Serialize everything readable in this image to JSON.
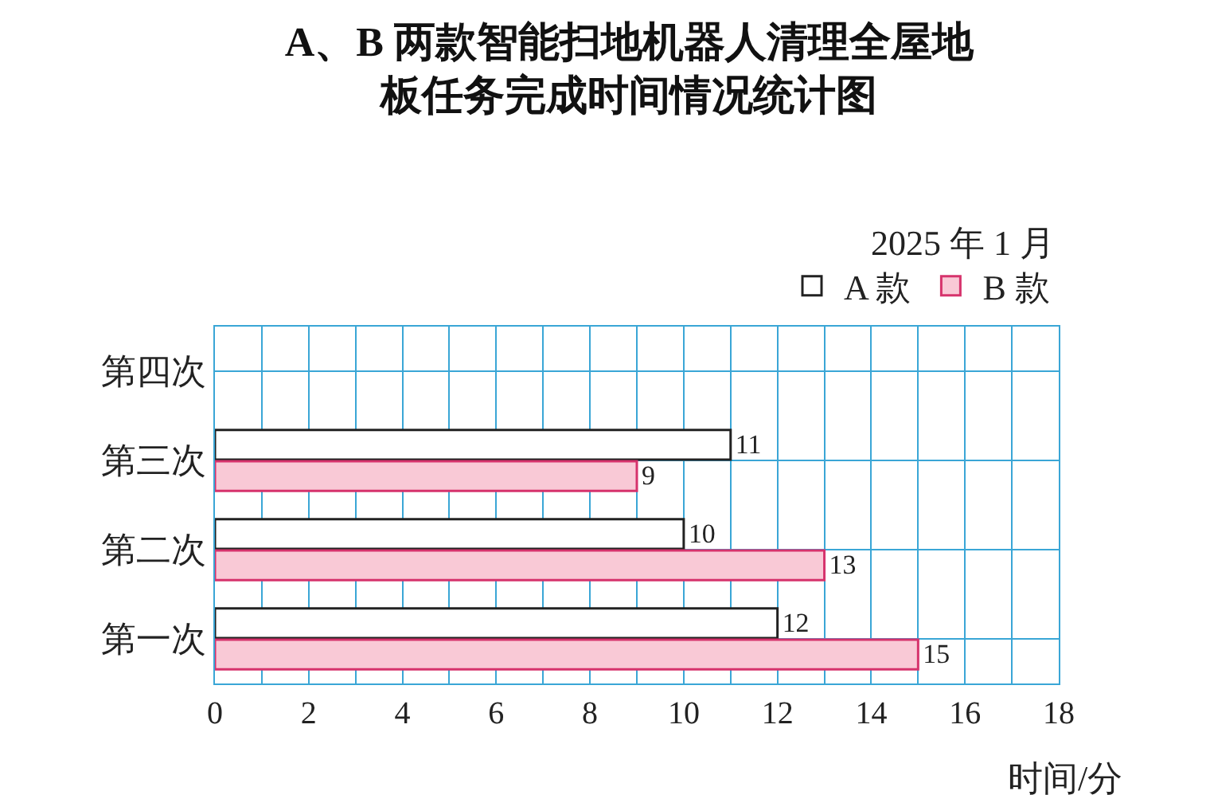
{
  "chart_data": {
    "type": "bar",
    "orientation": "horizontal",
    "title": "A、B 两款智能扫地机器人清理全屋地板任务完成时间情况统计图",
    "subtitle": "2025 年 1 月",
    "xlabel": "时间/分",
    "categories": [
      "第四次",
      "第三次",
      "第二次",
      "第一次"
    ],
    "series": [
      {
        "name": "A 款",
        "color": "#ffffff",
        "values": [
          null,
          11,
          10,
          12
        ]
      },
      {
        "name": "B 款",
        "color": "#f9c9d6",
        "values": [
          null,
          9,
          13,
          15
        ]
      }
    ],
    "xlim": [
      0,
      18
    ],
    "xticks": [
      0,
      {
        "value": 1,
        "label": null
      },
      2,
      {
        "value": 3,
        "label": null
      },
      4,
      {
        "value": 5,
        "label": null
      },
      6,
      {
        "value": 7,
        "label": null
      },
      8,
      {
        "value": 9,
        "label": null
      },
      10,
      {
        "value": 11,
        "label": null
      },
      12,
      {
        "value": 13,
        "label": null
      },
      14,
      {
        "value": 15,
        "label": null
      },
      16,
      {
        "value": 17,
        "label": null
      },
      18
    ],
    "grid": true,
    "legend": "top right",
    "data_labels": true
  }
}
